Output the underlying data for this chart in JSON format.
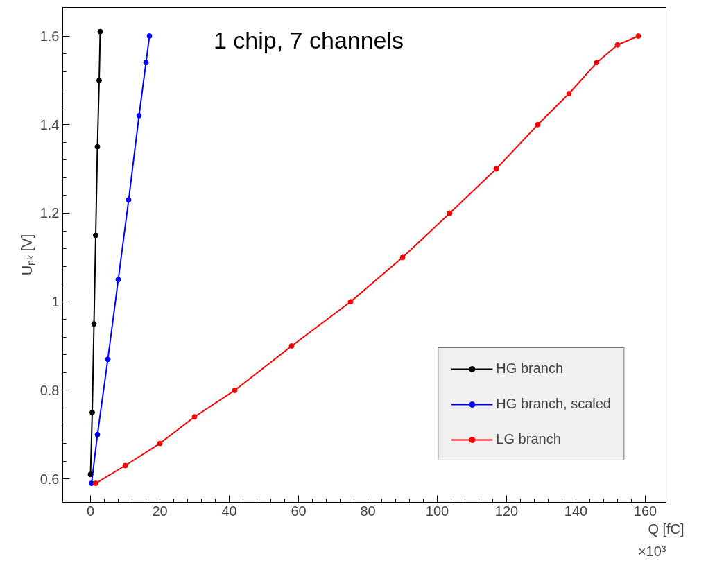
{
  "chart_data": {
    "type": "line",
    "xlabel": "Q [fC]",
    "ylabel": "Uₚₖ [V]",
    "annotations": [
      "1 chip, 7 channels",
      "×10³"
    ],
    "xlim": [
      -8,
      166
    ],
    "ylim": [
      0.547,
      1.665
    ],
    "xticks": [
      0,
      20,
      40,
      60,
      80,
      100,
      120,
      140,
      160
    ],
    "yticks": [
      0.6,
      0.8,
      {
        "value": 1,
        "label": "1"
      },
      1.2,
      1.4,
      1.6
    ],
    "grid": false,
    "legend": "bottom right",
    "marker": "circle",
    "line_style": "solid",
    "series": [
      {
        "name": "HG branch",
        "color": "#000000",
        "x": [
          0,
          0.5,
          1,
          1.5,
          2,
          2.5,
          2.8
        ],
        "values": [
          0.61,
          0.75,
          0.95,
          1.15,
          1.35,
          1.5,
          1.61
        ]
      },
      {
        "name": "HG branch, scaled",
        "color": "#0000ff",
        "x": [
          0.3,
          2,
          5,
          8,
          11,
          14,
          16,
          17
        ],
        "values": [
          0.59,
          0.7,
          0.87,
          1.05,
          1.23,
          1.42,
          1.54,
          1.6
        ]
      },
      {
        "name": "LG branch",
        "color": "#ff0000",
        "x": [
          1.5,
          10,
          20,
          30,
          41.6,
          58,
          75,
          90,
          103.6,
          117,
          129,
          138,
          146,
          152,
          158
        ],
        "values": [
          0.59,
          0.63,
          0.68,
          0.74,
          0.8,
          0.9,
          1.0,
          1.1,
          1.2,
          1.3,
          1.4,
          1.47,
          1.54,
          1.58,
          1.6
        ]
      }
    ]
  }
}
